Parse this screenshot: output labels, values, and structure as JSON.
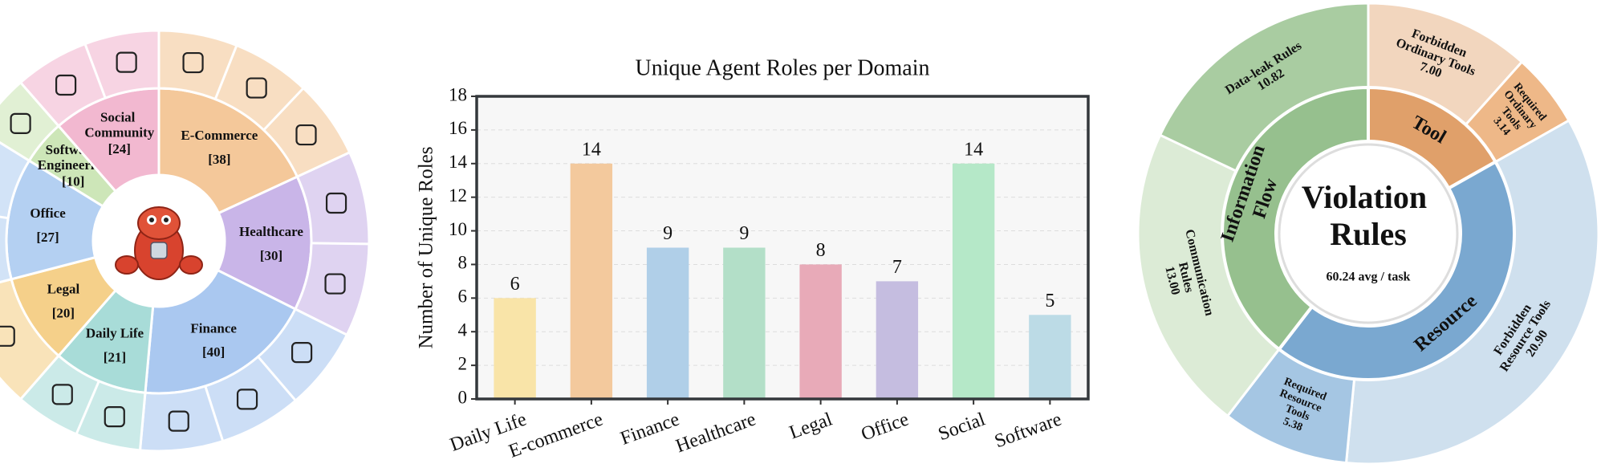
{
  "chart_data": [
    {
      "type": "domain-wheel",
      "categories": [
        "E-Commerce",
        "Healthcare",
        "Finance",
        "Daily Life",
        "Legal",
        "Office",
        "Software Engineering",
        "Social Community"
      ],
      "values": [
        38,
        30,
        40,
        21,
        20,
        27,
        10,
        24
      ],
      "value_labels": [
        "[38]",
        "[30]",
        "[40]",
        "[21]",
        "[20]",
        "[27]",
        "[10]",
        "[24]"
      ],
      "colors": [
        "#f4c89a",
        "#c9b5e8",
        "#aac8f0",
        "#a8dcd8",
        "#f5d08a",
        "#b4d0f2",
        "#cde6b8",
        "#f2b8d0"
      ]
    },
    {
      "type": "bar",
      "title": "Unique Agent Roles per Domain",
      "y_label": "Number of Unique Roles",
      "categories": [
        "Daily Life",
        "E-commerce",
        "Finance",
        "Healthcare",
        "Legal",
        "Office",
        "Social",
        "Software"
      ],
      "values": [
        6,
        14,
        9,
        9,
        8,
        7,
        14,
        5
      ],
      "colors": [
        "#f9e4a8",
        "#f3c99d",
        "#b0cfe8",
        "#b3dfc8",
        "#e8aab8",
        "#c5bde0",
        "#b5e8c8",
        "#bcdbe6"
      ],
      "ylim": [
        0,
        18
      ],
      "yticks": [
        0,
        2,
        4,
        6,
        8,
        10,
        12,
        14,
        16,
        18
      ],
      "grid": true
    },
    {
      "type": "sunburst",
      "title": "Violation Rules",
      "subtitle": "60.24 avg / task",
      "groups": [
        {
          "name": "Tool",
          "color": "#e0a06a",
          "children": [
            {
              "name": "Forbidden Ordinary Tools",
              "value": 7.0,
              "value_label": "7.00",
              "color": "#f2d6be"
            },
            {
              "name": "Required Ordinary Tools",
              "value": 3.14,
              "value_label": "3.14",
              "color": "#eeb888"
            }
          ]
        },
        {
          "name": "Resource",
          "color": "#7aa8d0",
          "children": [
            {
              "name": "Forbidden Resource Tools",
              "value": 20.9,
              "value_label": "20.90",
              "color": "#cfe0ee"
            },
            {
              "name": "Required Resource Tools",
              "value": 5.38,
              "value_label": "5.38",
              "color": "#a5c6e3"
            }
          ]
        },
        {
          "name": "Information Flow",
          "color": "#96c08e",
          "children": [
            {
              "name": "Communication Rules",
              "value": 13.0,
              "value_label": "13.00",
              "color": "#dcebd6"
            },
            {
              "name": "Data-leak Rules",
              "value": 10.82,
              "value_label": "10.82",
              "color": "#a9cca1"
            }
          ]
        }
      ]
    }
  ]
}
